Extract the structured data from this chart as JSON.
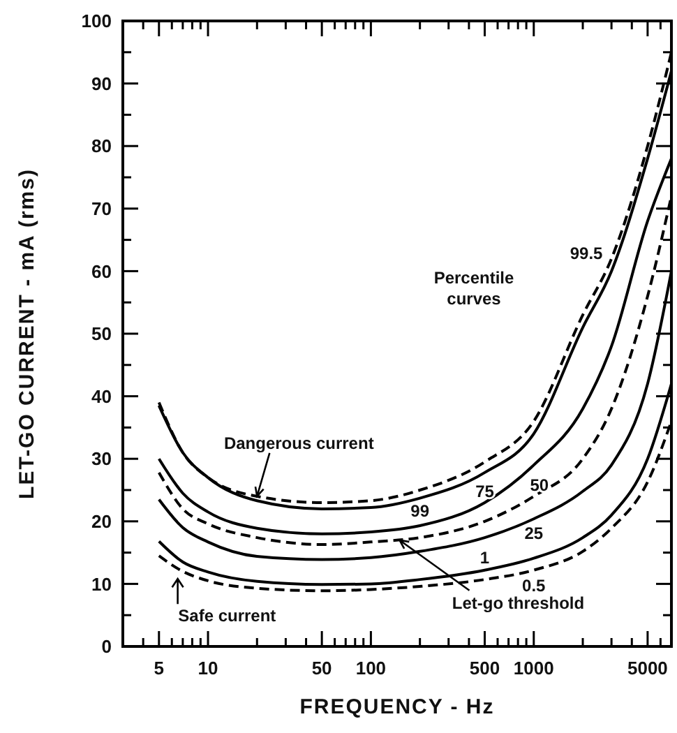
{
  "chart_data": {
    "type": "line",
    "xlabel": "FREQUENCY -  Hz",
    "ylabel": "LET-GO CURRENT - mA (rms)",
    "log": "x",
    "grid": false,
    "marker": "none",
    "x": [
      5,
      7,
      10,
      20,
      50,
      100,
      200,
      500,
      1000,
      2000,
      3000,
      5000,
      7000
    ],
    "xlim": [
      3,
      7000
    ],
    "ylim": [
      0,
      100
    ],
    "xticks": [
      {
        "value": 3,
        "label": null
      },
      {
        "value": 4,
        "label": null
      },
      5,
      {
        "value": 6,
        "label": null
      },
      {
        "value": 7,
        "label": null
      },
      {
        "value": 8,
        "label": null
      },
      {
        "value": 9,
        "label": null
      },
      10,
      {
        "value": 20,
        "label": null
      },
      {
        "value": 30,
        "label": null
      },
      {
        "value": 40,
        "label": null
      },
      50,
      {
        "value": 60,
        "label": null
      },
      {
        "value": 70,
        "label": null
      },
      {
        "value": 80,
        "label": null
      },
      {
        "value": 90,
        "label": null
      },
      100,
      {
        "value": 200,
        "label": null
      },
      {
        "value": 300,
        "label": null
      },
      {
        "value": 400,
        "label": null
      },
      500,
      {
        "value": 600,
        "label": null
      },
      {
        "value": 700,
        "label": null
      },
      {
        "value": 800,
        "label": null
      },
      {
        "value": 900,
        "label": null
      },
      1000,
      {
        "value": 2000,
        "label": null
      },
      {
        "value": 3000,
        "label": null
      },
      {
        "value": 4000,
        "label": null
      },
      5000,
      {
        "value": 6000,
        "label": null
      },
      {
        "value": 7000,
        "label": null
      }
    ],
    "yticks": [
      0,
      {
        "value": 5,
        "label": null
      },
      10,
      {
        "value": 15,
        "label": null
      },
      20,
      {
        "value": 25,
        "label": null
      },
      30,
      {
        "value": 35,
        "label": null
      },
      40,
      {
        "value": 45,
        "label": null
      },
      50,
      {
        "value": 55,
        "label": null
      },
      60,
      {
        "value": 65,
        "label": null
      },
      70,
      {
        "value": 75,
        "label": null
      },
      80,
      {
        "value": 85,
        "label": null
      },
      90,
      {
        "value": 95,
        "label": null
      },
      100
    ],
    "series": [
      {
        "name": "99.5",
        "color": "#000000",
        "line_style": "dashed",
        "values": [
          39,
          31,
          27,
          24,
          23,
          23.3,
          25,
          29.5,
          36,
          53,
          62,
          80,
          95
        ]
      },
      {
        "name": "99",
        "color": "#000000",
        "line_style": "solid",
        "values": [
          38.5,
          31,
          27,
          23.3,
          22,
          22.2,
          23.7,
          27.8,
          34,
          51,
          60,
          78,
          92
        ]
      },
      {
        "name": "75",
        "color": "#000000",
        "line_style": "solid",
        "values": [
          30,
          24.5,
          21.5,
          18.9,
          18,
          18.3,
          19.3,
          23,
          29,
          38,
          48,
          68,
          78
        ]
      },
      {
        "name": "50",
        "color": "#000000",
        "line_style": "dashed",
        "values": [
          27.8,
          22,
          19.6,
          17.4,
          16.3,
          16.7,
          17.4,
          20,
          24,
          30,
          38,
          56,
          72
        ]
      },
      {
        "name": "25",
        "color": "#000000",
        "line_style": "solid",
        "values": [
          23.5,
          19,
          16.7,
          14.4,
          13.9,
          14.2,
          15.2,
          17.4,
          20.4,
          24.8,
          29,
          42,
          60
        ]
      },
      {
        "name": "1",
        "color": "#000000",
        "line_style": "solid",
        "values": [
          16.8,
          13.5,
          11.9,
          10.4,
          9.9,
          10,
          10.7,
          12.2,
          14.1,
          17.4,
          21,
          30,
          42
        ]
      },
      {
        "name": "0.5",
        "color": "#000000",
        "line_style": "dashed",
        "values": [
          14.5,
          12,
          10.5,
          9.3,
          8.9,
          9.1,
          9.6,
          10.7,
          12.2,
          15.2,
          18.9,
          26.3,
          36
        ]
      }
    ],
    "annotations": [
      "Percentile curves",
      {
        "text": "Dangerous current",
        "x": 20,
        "y": 24
      },
      {
        "text": "Let-go threshold",
        "x": 150,
        "y": 17
      },
      "Safe current"
    ]
  }
}
